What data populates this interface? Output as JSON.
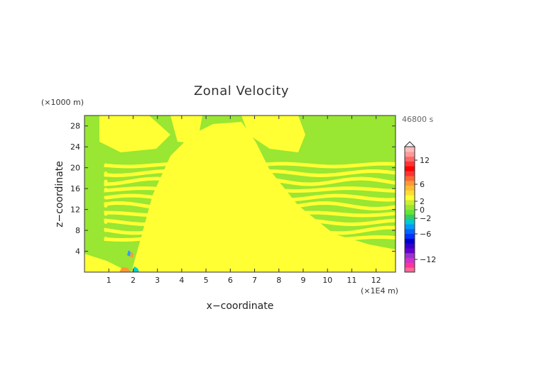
{
  "chart_data": {
    "type": "heatmap",
    "title": "Zonal Velocity",
    "xlabel": "x−coordinate",
    "ylabel": "z−coordinate",
    "x_scale_label": "(×1E4 m)",
    "y_scale_label": "(×1000 m)",
    "time_label": "46800 s",
    "xlim": [
      0,
      12.8
    ],
    "ylim": [
      0,
      30
    ],
    "x_ticks": [
      "1",
      "2",
      "3",
      "4",
      "5",
      "6",
      "7",
      "8",
      "9",
      "10",
      "11",
      "12"
    ],
    "y_ticks": [
      "4",
      "8",
      "12",
      "16",
      "20",
      "24",
      "28"
    ],
    "colorbar": {
      "tick_labels": [
        "12",
        "6",
        "2",
        "0",
        "−2",
        "−6",
        "−12"
      ]
    },
    "colors": {
      "background_field": "#99e633",
      "positive_band": "#ffff33",
      "negative_low": "#00cccc",
      "positive_high": "#ff9933"
    }
  }
}
